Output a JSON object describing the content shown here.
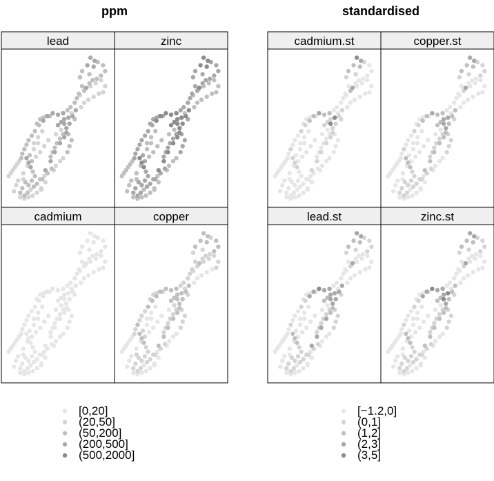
{
  "chart_data": [
    {
      "type": "scatter",
      "title": "ppm",
      "panels": [
        "lead",
        "zinc",
        "cadmium",
        "copper"
      ],
      "legend": {
        "placement": "bottom",
        "classes": [
          "[0,20]",
          "(20,50]",
          "(50,200]",
          "(200,500]",
          "(500,2000]"
        ],
        "colors": [
          "#e6e6e6",
          "#d4d4d4",
          "#bfbfbf",
          "#a8a8a8",
          "#8c8c8c"
        ]
      },
      "values_by_panel": {
        "lead": [
          3,
          3,
          3,
          3,
          2,
          2,
          2,
          2,
          2,
          2,
          2,
          2,
          2,
          2,
          3,
          2,
          2,
          2,
          2,
          2,
          2,
          2,
          1,
          1,
          1,
          1,
          1,
          1,
          1,
          1,
          1,
          1,
          1,
          1,
          1,
          3,
          3,
          3,
          3,
          3,
          2,
          2,
          2,
          2,
          2,
          2,
          2,
          2,
          1,
          1,
          1,
          1,
          1,
          1,
          2,
          2,
          2,
          2,
          2,
          1,
          1,
          1,
          3,
          3,
          3,
          3,
          2,
          2,
          2,
          2,
          2,
          2,
          3,
          2,
          2,
          2,
          2,
          1,
          1,
          1,
          1,
          3,
          3,
          3,
          2,
          2,
          2,
          2,
          2,
          1,
          2,
          2,
          2,
          2,
          1,
          2,
          2,
          2,
          1,
          2,
          2,
          1,
          1,
          3,
          3,
          2,
          1,
          1,
          1,
          1,
          1,
          1,
          1,
          2,
          1,
          1,
          1,
          1,
          1,
          1,
          1,
          1,
          1,
          1,
          1,
          2,
          1,
          1,
          3,
          3,
          3,
          3,
          3,
          3,
          3,
          3,
          2
        ],
        "zinc": [
          4,
          4,
          4,
          4,
          3,
          3,
          3,
          3,
          3,
          3,
          3,
          3,
          3,
          3,
          4,
          3,
          3,
          3,
          3,
          3,
          3,
          3,
          2,
          2,
          2,
          2,
          2,
          2,
          2,
          2,
          2,
          2,
          2,
          2,
          2,
          4,
          4,
          4,
          4,
          4,
          3,
          3,
          3,
          3,
          3,
          3,
          3,
          3,
          2,
          2,
          2,
          2,
          2,
          2,
          3,
          3,
          3,
          3,
          3,
          2,
          2,
          2,
          4,
          4,
          4,
          4,
          3,
          3,
          3,
          3,
          3,
          3,
          4,
          3,
          3,
          3,
          3,
          2,
          2,
          2,
          2,
          4,
          4,
          4,
          3,
          3,
          3,
          3,
          3,
          2,
          3,
          3,
          3,
          3,
          2,
          3,
          3,
          3,
          2,
          3,
          3,
          2,
          2,
          4,
          4,
          3,
          2,
          2,
          2,
          2,
          2,
          2,
          2,
          3,
          2,
          2,
          2,
          2,
          2,
          2,
          2,
          2,
          2,
          2,
          2,
          3,
          2,
          2,
          4,
          4,
          4,
          4,
          4,
          4,
          4,
          4,
          3
        ],
        "cadmium": [
          0,
          0,
          0,
          0,
          0,
          0,
          0,
          0,
          0,
          0,
          0,
          0,
          0,
          0,
          0,
          0,
          0,
          0,
          0,
          0,
          0,
          0,
          0,
          0,
          0,
          0,
          0,
          0,
          0,
          0,
          0,
          0,
          0,
          0,
          0,
          0,
          0,
          0,
          0,
          0,
          0,
          0,
          0,
          0,
          0,
          0,
          0,
          0,
          0,
          0,
          0,
          0,
          0,
          0,
          0,
          0,
          0,
          0,
          0,
          0,
          0,
          0,
          0,
          0,
          0,
          0,
          0,
          0,
          0,
          0,
          0,
          0,
          0,
          0,
          0,
          0,
          0,
          0,
          0,
          0,
          0,
          0,
          0,
          0,
          0,
          0,
          0,
          0,
          0,
          0,
          0,
          0,
          0,
          0,
          0,
          0,
          0,
          0,
          0,
          0,
          0,
          0,
          0,
          0,
          0,
          0,
          0,
          0,
          0,
          0,
          0,
          0,
          0,
          0,
          0,
          0,
          0,
          0,
          0,
          0,
          0,
          0,
          0,
          0,
          0,
          0,
          0,
          0,
          0,
          0,
          0,
          0,
          0,
          0,
          0,
          0,
          0
        ],
        "copper": [
          2,
          2,
          2,
          2,
          2,
          1,
          1,
          1,
          2,
          2,
          2,
          1,
          1,
          1,
          2,
          1,
          1,
          1,
          1,
          1,
          1,
          1,
          1,
          1,
          1,
          1,
          1,
          1,
          1,
          1,
          0,
          0,
          0,
          0,
          0,
          2,
          2,
          2,
          2,
          2,
          2,
          2,
          1,
          1,
          1,
          2,
          1,
          1,
          0,
          0,
          0,
          0,
          0,
          0,
          1,
          1,
          1,
          1,
          1,
          0,
          0,
          0,
          2,
          2,
          2,
          2,
          1,
          1,
          1,
          1,
          1,
          1,
          2,
          1,
          1,
          1,
          1,
          0,
          0,
          0,
          0,
          2,
          2,
          2,
          1,
          1,
          1,
          1,
          1,
          1,
          1,
          1,
          1,
          1,
          0,
          1,
          1,
          1,
          0,
          1,
          1,
          0,
          0,
          2,
          2,
          1,
          1,
          1,
          0,
          0,
          0,
          0,
          0,
          1,
          0,
          0,
          0,
          0,
          0,
          0,
          0,
          0,
          0,
          0,
          0,
          1,
          0,
          0,
          2,
          2,
          2,
          2,
          2,
          2,
          2,
          2,
          1
        ]
      }
    },
    {
      "type": "scatter",
      "title": "standardised",
      "panels": [
        "cadmium.st",
        "copper.st",
        "lead.st",
        "zinc.st"
      ],
      "legend": {
        "placement": "bottom",
        "classes": [
          "[−1.2,0]",
          "(0,1]",
          "(1,2]",
          "(2,3]",
          "(3,5]"
        ],
        "colors": [
          "#e6e6e6",
          "#d4d4d4",
          "#bfbfbf",
          "#a8a8a8",
          "#8c8c8c"
        ]
      },
      "values_by_panel": {
        "cadmium.st": [
          4,
          3,
          2,
          2,
          2,
          1,
          1,
          1,
          0,
          0,
          0,
          0,
          0,
          0,
          3,
          2,
          0,
          0,
          0,
          0,
          0,
          0,
          0,
          0,
          0,
          0,
          0,
          0,
          0,
          0,
          0,
          0,
          0,
          0,
          0,
          2,
          2,
          3,
          2,
          2,
          1,
          1,
          0,
          0,
          0,
          1,
          0,
          0,
          0,
          0,
          0,
          0,
          0,
          0,
          0,
          0,
          0,
          0,
          0,
          0,
          0,
          0,
          1,
          1,
          1,
          1,
          0,
          0,
          0,
          0,
          0,
          0,
          1,
          0,
          0,
          0,
          0,
          0,
          0,
          0,
          0,
          1,
          1,
          1,
          0,
          0,
          0,
          0,
          0,
          0,
          0,
          0,
          0,
          0,
          0,
          0,
          0,
          0,
          0,
          0,
          0,
          0,
          0,
          4,
          4,
          1,
          0,
          0,
          0,
          0,
          0,
          0,
          0,
          0,
          0,
          0,
          0,
          0,
          0,
          0,
          0,
          0,
          0,
          0,
          0,
          0,
          0,
          0,
          1,
          1,
          1,
          1,
          1,
          1,
          1,
          1,
          0
        ],
        "copper.st": [
          3,
          3,
          2,
          2,
          2,
          1,
          1,
          1,
          1,
          1,
          1,
          0,
          0,
          0,
          3,
          1,
          0,
          0,
          0,
          0,
          0,
          0,
          0,
          0,
          0,
          0,
          0,
          0,
          0,
          0,
          0,
          0,
          0,
          0,
          0,
          2,
          2,
          3,
          2,
          2,
          1,
          1,
          0,
          0,
          0,
          1,
          0,
          0,
          0,
          0,
          0,
          0,
          0,
          0,
          0,
          0,
          0,
          0,
          0,
          0,
          0,
          0,
          2,
          2,
          3,
          3,
          1,
          1,
          1,
          1,
          1,
          1,
          2,
          1,
          1,
          1,
          1,
          0,
          0,
          0,
          0,
          2,
          2,
          2,
          1,
          1,
          1,
          1,
          1,
          0,
          1,
          1,
          1,
          1,
          0,
          1,
          1,
          1,
          0,
          1,
          1,
          0,
          0,
          3,
          3,
          1,
          0,
          0,
          0,
          0,
          0,
          0,
          0,
          0,
          0,
          0,
          0,
          0,
          0,
          0,
          0,
          0,
          0,
          0,
          0,
          0,
          0,
          0,
          2,
          2,
          2,
          2,
          2,
          2,
          2,
          2,
          1
        ],
        "lead.st": [
          3,
          3,
          2,
          2,
          2,
          1,
          1,
          1,
          1,
          1,
          1,
          0,
          0,
          0,
          3,
          1,
          0,
          0,
          0,
          0,
          0,
          0,
          0,
          0,
          0,
          0,
          0,
          0,
          0,
          0,
          0,
          0,
          0,
          0,
          0,
          3,
          3,
          4,
          3,
          3,
          1,
          1,
          0,
          0,
          0,
          1,
          0,
          0,
          0,
          0,
          0,
          0,
          0,
          0,
          0,
          0,
          0,
          0,
          0,
          0,
          0,
          0,
          2,
          2,
          3,
          3,
          1,
          1,
          1,
          1,
          1,
          1,
          2,
          1,
          1,
          1,
          1,
          0,
          0,
          0,
          0,
          2,
          2,
          2,
          1,
          1,
          1,
          1,
          1,
          0,
          1,
          1,
          1,
          1,
          0,
          1,
          1,
          1,
          0,
          1,
          1,
          0,
          0,
          3,
          3,
          1,
          0,
          0,
          0,
          0,
          0,
          0,
          0,
          0,
          0,
          0,
          0,
          0,
          0,
          0,
          0,
          0,
          0,
          0,
          0,
          0,
          0,
          0,
          3,
          3,
          3,
          2,
          3,
          3,
          3,
          3,
          1
        ],
        "zinc.st": [
          3,
          3,
          2,
          2,
          2,
          1,
          1,
          1,
          1,
          1,
          1,
          0,
          0,
          0,
          3,
          1,
          0,
          0,
          0,
          0,
          0,
          0,
          0,
          0,
          0,
          0,
          0,
          0,
          0,
          0,
          0,
          0,
          0,
          0,
          0,
          3,
          3,
          4,
          3,
          3,
          1,
          1,
          0,
          0,
          0,
          1,
          0,
          0,
          0,
          0,
          0,
          0,
          0,
          0,
          0,
          0,
          0,
          0,
          0,
          0,
          0,
          0,
          2,
          2,
          3,
          3,
          1,
          1,
          1,
          1,
          1,
          1,
          2,
          1,
          1,
          1,
          1,
          0,
          0,
          0,
          0,
          2,
          2,
          2,
          1,
          1,
          1,
          1,
          1,
          0,
          1,
          1,
          1,
          1,
          0,
          1,
          1,
          1,
          0,
          1,
          1,
          0,
          0,
          4,
          4,
          1,
          0,
          0,
          0,
          0,
          0,
          0,
          0,
          0,
          0,
          0,
          0,
          0,
          0,
          0,
          0,
          0,
          0,
          0,
          0,
          0,
          0,
          0,
          2,
          2,
          2,
          2,
          2,
          2,
          2,
          2,
          1
        ]
      }
    }
  ],
  "locations": {
    "x": [
      0.81,
      0.85,
      0.84,
      0.78,
      0.73,
      0.71,
      0.8,
      0.88,
      0.93,
      0.95,
      0.91,
      0.87,
      0.83,
      0.8,
      0.77,
      0.75,
      0.73,
      0.7,
      0.68,
      0.66,
      0.62,
      0.59,
      0.66,
      0.71,
      0.76,
      0.81,
      0.86,
      0.91,
      0.95,
      0.93,
      0.89,
      0.84,
      0.79,
      0.75,
      0.72,
      0.55,
      0.5,
      0.45,
      0.4,
      0.36,
      0.32,
      0.28,
      0.25,
      0.22,
      0.2,
      0.18,
      0.16,
      0.15,
      0.13,
      0.11,
      0.09,
      0.07,
      0.05,
      0.03,
      0.3,
      0.33,
      0.36,
      0.39,
      0.42,
      0.35,
      0.31,
      0.27,
      0.5,
      0.53,
      0.56,
      0.58,
      0.55,
      0.52,
      0.49,
      0.47,
      0.45,
      0.43,
      0.56,
      0.6,
      0.63,
      0.61,
      0.59,
      0.55,
      0.52,
      0.48,
      0.46,
      0.2,
      0.22,
      0.24,
      0.26,
      0.28,
      0.25,
      0.22,
      0.19,
      0.17,
      0.16,
      0.14,
      0.18,
      0.21,
      0.24,
      0.27,
      0.3,
      0.33,
      0.37,
      0.4,
      0.44,
      0.38,
      0.34,
      0.56,
      0.6,
      0.66,
      0.63,
      0.53,
      0.48,
      0.41,
      0.37,
      0.33,
      0.29,
      0.25,
      0.21,
      0.17,
      0.12,
      0.1,
      0.08,
      0.14,
      0.18,
      0.22,
      0.26,
      0.3,
      0.34,
      0.23,
      0.27,
      0.31,
      0.67,
      0.64,
      0.61,
      0.58,
      0.52,
      0.47,
      0.43,
      0.38,
      0.35
    ],
    "y": [
      0.03,
      0.05,
      0.09,
      0.08,
      0.12,
      0.16,
      0.14,
      0.06,
      0.08,
      0.12,
      0.15,
      0.17,
      0.18,
      0.2,
      0.23,
      0.25,
      0.22,
      0.27,
      0.3,
      0.33,
      0.36,
      0.38,
      0.33,
      0.28,
      0.24,
      0.22,
      0.2,
      0.18,
      0.22,
      0.26,
      0.27,
      0.29,
      0.31,
      0.33,
      0.36,
      0.4,
      0.41,
      0.4,
      0.42,
      0.45,
      0.48,
      0.52,
      0.55,
      0.58,
      0.61,
      0.64,
      0.67,
      0.7,
      0.72,
      0.74,
      0.76,
      0.78,
      0.8,
      0.82,
      0.47,
      0.44,
      0.43,
      0.42,
      0.42,
      0.52,
      0.56,
      0.6,
      0.48,
      0.46,
      0.44,
      0.5,
      0.54,
      0.57,
      0.6,
      0.63,
      0.66,
      0.69,
      0.56,
      0.54,
      0.58,
      0.62,
      0.66,
      0.7,
      0.72,
      0.75,
      0.78,
      0.7,
      0.73,
      0.76,
      0.79,
      0.82,
      0.85,
      0.88,
      0.86,
      0.84,
      0.9,
      0.93,
      0.95,
      0.93,
      0.91,
      0.89,
      0.87,
      0.84,
      0.82,
      0.8,
      0.77,
      0.86,
      0.9,
      0.47,
      0.43,
      0.44,
      0.4,
      0.51,
      0.54,
      0.58,
      0.62,
      0.66,
      0.69,
      0.72,
      0.75,
      0.8,
      0.85,
      0.88,
      0.92,
      0.96,
      0.97,
      0.96,
      0.95,
      0.93,
      0.91,
      0.68,
      0.64,
      0.6,
      0.38,
      0.42,
      0.47,
      0.53,
      0.6,
      0.66,
      0.72,
      0.78,
      0.84
    ]
  }
}
